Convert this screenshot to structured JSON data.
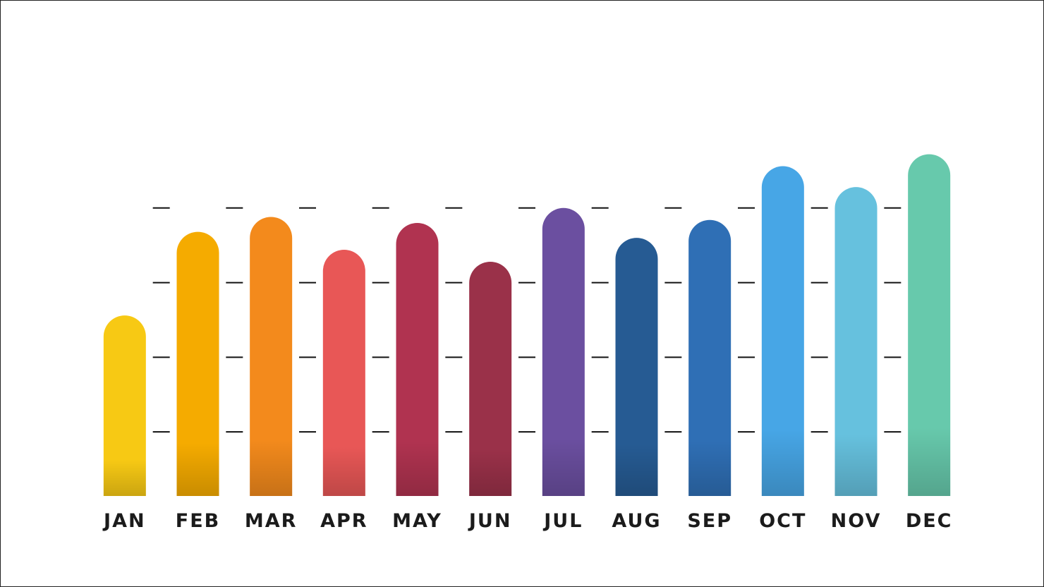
{
  "chart_data": {
    "type": "bar",
    "categories": [
      "JAN",
      "FEB",
      "MAR",
      "APR",
      "MAY",
      "JUN",
      "JUL",
      "AUG",
      "SEP",
      "OCT",
      "NOV",
      "DEC"
    ],
    "values": [
      64,
      92,
      97,
      86,
      95,
      82,
      100,
      90,
      96,
      114,
      107,
      118
    ],
    "colors": [
      "#f7c914",
      "#f5ab00",
      "#f38a1c",
      "#e85756",
      "#b03350",
      "#9a3149",
      "#6b4fa0",
      "#265b93",
      "#2f6fb5",
      "#47a6e6",
      "#66c1de",
      "#67c9ac"
    ],
    "ylim": [
      4,
      125
    ],
    "yticks": [
      25,
      50,
      75,
      100
    ]
  }
}
